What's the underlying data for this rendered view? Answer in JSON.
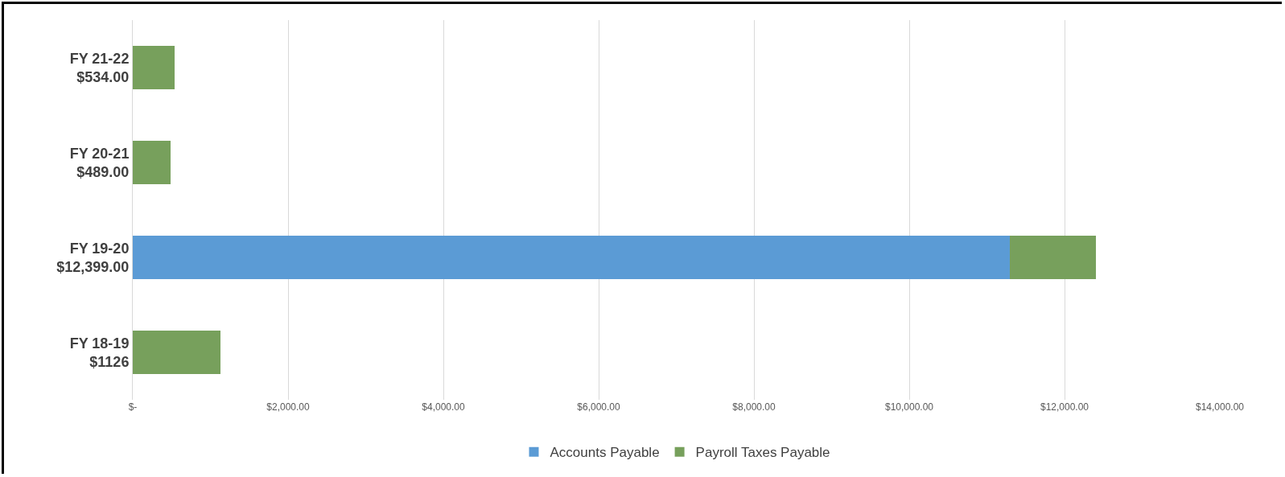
{
  "chart_data": {
    "type": "bar",
    "orientation": "horizontal",
    "stacked": true,
    "categories": [
      "FY 21-22\n$534.00",
      "FY 20-21\n$489.00",
      "FY 19-20\n$12,399.00",
      "FY 18-19\n$1126"
    ],
    "series": [
      {
        "name": "Accounts Payable",
        "color": "#5b9bd5",
        "values": [
          0,
          0,
          11300,
          0
        ]
      },
      {
        "name": "Payroll Taxes Payable",
        "color": "#77a05c",
        "values": [
          534,
          489,
          1099,
          1126
        ]
      }
    ],
    "xlim": [
      0,
      14000
    ],
    "xticks": [
      {
        "value": 0,
        "label": "$-"
      },
      {
        "value": 2000,
        "label": "$2,000.00"
      },
      {
        "value": 4000,
        "label": "$4,000.00"
      },
      {
        "value": 6000,
        "label": "$6,000.00"
      },
      {
        "value": 8000,
        "label": "$8,000.00"
      },
      {
        "value": 10000,
        "label": "$10,000.00"
      },
      {
        "value": 12000,
        "label": "$12,000.00"
      },
      {
        "value": 14000,
        "label": "$14,000.00"
      }
    ],
    "grid": "x",
    "legend": "bottom"
  }
}
